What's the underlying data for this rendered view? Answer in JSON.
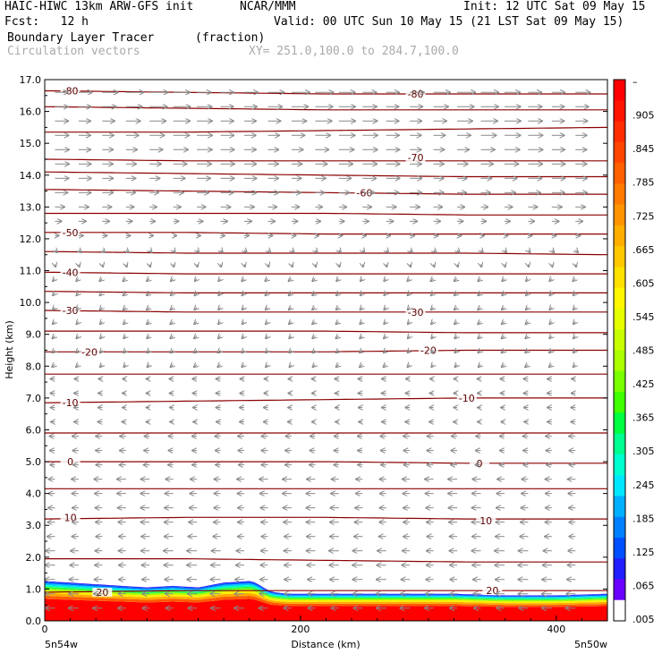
{
  "header": {
    "title_left": "HAIC-HIWC 13km ARW-GFS init",
    "org": "NCAR/MMM",
    "init": "Init: 12 UTC Sat 09 May 15",
    "fcst": "Fcst:   12 h",
    "valid": "Valid: 00 UTC Sun 10 May 15 (21 LST Sat 09 May 15)",
    "field_name": "Boundary Layer Tracer",
    "field_units": "(fraction)",
    "vector_label": "Circulation vectors",
    "xy_label": "XY= 251.0,100.0 to 284.7,100.0"
  },
  "chart_data": {
    "type": "heatmap",
    "xlabel": "Distance (km)",
    "ylabel": "Height (km)",
    "xlim": [
      0,
      440
    ],
    "ylim": [
      0.0,
      17.0
    ],
    "x_ticks": [
      0,
      200,
      400
    ],
    "y_ticks": [
      "0.0",
      "1.0",
      "2.0",
      "3.0",
      "4.0",
      "5.0",
      "6.0",
      "7.0",
      "8.0",
      "9.0",
      "10.0",
      "11.0",
      "12.0",
      "13.0",
      "14.0",
      "15.0",
      "16.0",
      "17.0"
    ],
    "x_end_labels": {
      "left": "5n54w",
      "right": "5n50w"
    },
    "colorbar": {
      "labels": [
        "–",
        ".905",
        ".845",
        ".785",
        ".725",
        ".665",
        ".605",
        ".545",
        ".485",
        ".425",
        ".365",
        ".305",
        ".245",
        ".185",
        ".125",
        ".065",
        ".005"
      ],
      "colors": [
        "#ff0000",
        "#ff1400",
        "#ff2d00",
        "#ff4600",
        "#ff6000",
        "#ff7a00",
        "#ff9400",
        "#ffae00",
        "#ffc800",
        "#ffe100",
        "#fff700",
        "#e6ff00",
        "#c8ff00",
        "#aaff00",
        "#78ff00",
        "#40ff00",
        "#00ff40",
        "#00ff90",
        "#00ffd0",
        "#00e8ff",
        "#00b0ff",
        "#0080ff",
        "#0050ff",
        "#2020ff",
        "#6a00ff",
        "#ffffff"
      ]
    },
    "tracer_profile": {
      "description_units": "km",
      "x": [
        0,
        20,
        40,
        60,
        80,
        100,
        120,
        140,
        160,
        165,
        175,
        180,
        190,
        200,
        240,
        280,
        320,
        360,
        380,
        400,
        440
      ],
      "top_height": [
        1.25,
        1.2,
        1.15,
        1.1,
        1.05,
        1.1,
        1.05,
        1.2,
        1.25,
        1.2,
        0.95,
        0.9,
        0.85,
        0.85,
        0.85,
        0.85,
        0.85,
        0.8,
        0.8,
        0.8,
        0.85
      ]
    },
    "contours": [
      {
        "label": "-80",
        "y": [
          16.65,
          16.6,
          16.55,
          16.55,
          16.55
        ],
        "label_pos": [
          [
            20,
            16.65
          ],
          [
            290,
            16.55
          ]
        ]
      },
      {
        "label": "",
        "y": [
          16.15,
          16.1,
          16.05,
          16.05,
          16.05
        ]
      },
      {
        "label": "",
        "y": [
          15.35,
          15.35,
          15.4,
          15.45,
          15.5
        ]
      },
      {
        "label": "-70",
        "y": [
          14.5,
          14.45,
          14.45,
          14.45,
          14.45
        ],
        "label_pos": [
          [
            290,
            14.55
          ]
        ]
      },
      {
        "label": "",
        "y": [
          14.1,
          14.05,
          14.0,
          13.95,
          13.95
        ]
      },
      {
        "label": "-60",
        "y": [
          13.55,
          13.5,
          13.45,
          13.4,
          13.4
        ],
        "label_pos": [
          [
            250,
            13.45
          ]
        ]
      },
      {
        "label": "",
        "y": [
          12.8,
          12.8,
          12.8,
          12.75,
          12.75
        ]
      },
      {
        "label": "-50",
        "y": [
          12.2,
          12.2,
          12.15,
          12.15,
          12.15
        ],
        "label_pos": [
          [
            20,
            12.2
          ]
        ]
      },
      {
        "label": "",
        "y": [
          11.6,
          11.55,
          11.55,
          11.55,
          11.5
        ]
      },
      {
        "label": "-40",
        "y": [
          10.95,
          10.9,
          10.9,
          10.9,
          10.9
        ],
        "label_pos": [
          [
            20,
            10.95
          ]
        ]
      },
      {
        "label": "",
        "y": [
          10.35,
          10.3,
          10.3,
          10.3,
          10.3
        ]
      },
      {
        "label": "-30",
        "y": [
          9.75,
          9.7,
          9.7,
          9.7,
          9.7
        ],
        "label_pos": [
          [
            20,
            9.75
          ],
          [
            290,
            9.7
          ]
        ]
      },
      {
        "label": "",
        "y": [
          9.1,
          9.1,
          9.1,
          9.05,
          9.05
        ]
      },
      {
        "label": "-20",
        "y": [
          8.45,
          8.45,
          8.45,
          8.5,
          8.5
        ],
        "label_pos": [
          [
            35,
            8.45
          ],
          [
            300,
            8.5
          ]
        ]
      },
      {
        "label": "",
        "y": [
          7.75,
          7.75,
          7.75,
          7.75,
          7.75
        ]
      },
      {
        "label": "-10",
        "y": [
          6.85,
          6.9,
          6.95,
          7.0,
          7.0
        ],
        "label_pos": [
          [
            20,
            6.85
          ],
          [
            330,
            7.0
          ]
        ]
      },
      {
        "label": "",
        "y": [
          5.9,
          5.9,
          5.9,
          5.9,
          5.9
        ]
      },
      {
        "label": "0",
        "y": [
          5.0,
          5.0,
          5.0,
          4.95,
          4.95
        ],
        "label_pos": [
          [
            20,
            5.0
          ],
          [
            340,
            4.95
          ]
        ]
      },
      {
        "label": "",
        "y": [
          4.15,
          4.15,
          4.15,
          4.15,
          4.15
        ]
      },
      {
        "label": "10",
        "y": [
          3.2,
          3.25,
          3.25,
          3.2,
          3.2
        ],
        "label_pos": [
          [
            20,
            3.25
          ],
          [
            345,
            3.15
          ]
        ]
      },
      {
        "label": "",
        "y": [
          1.95,
          1.95,
          1.9,
          1.85,
          1.85
        ]
      },
      {
        "label": "20",
        "y": [
          0.9,
          0.95,
          0.95,
          0.95,
          0.95
        ],
        "label_pos": [
          [
            45,
            0.9
          ],
          [
            350,
            0.95
          ]
        ]
      }
    ],
    "contour_x": [
      0,
      110,
      220,
      330,
      440
    ],
    "contour_color": "#8b0000",
    "vector_color": "#888888"
  }
}
